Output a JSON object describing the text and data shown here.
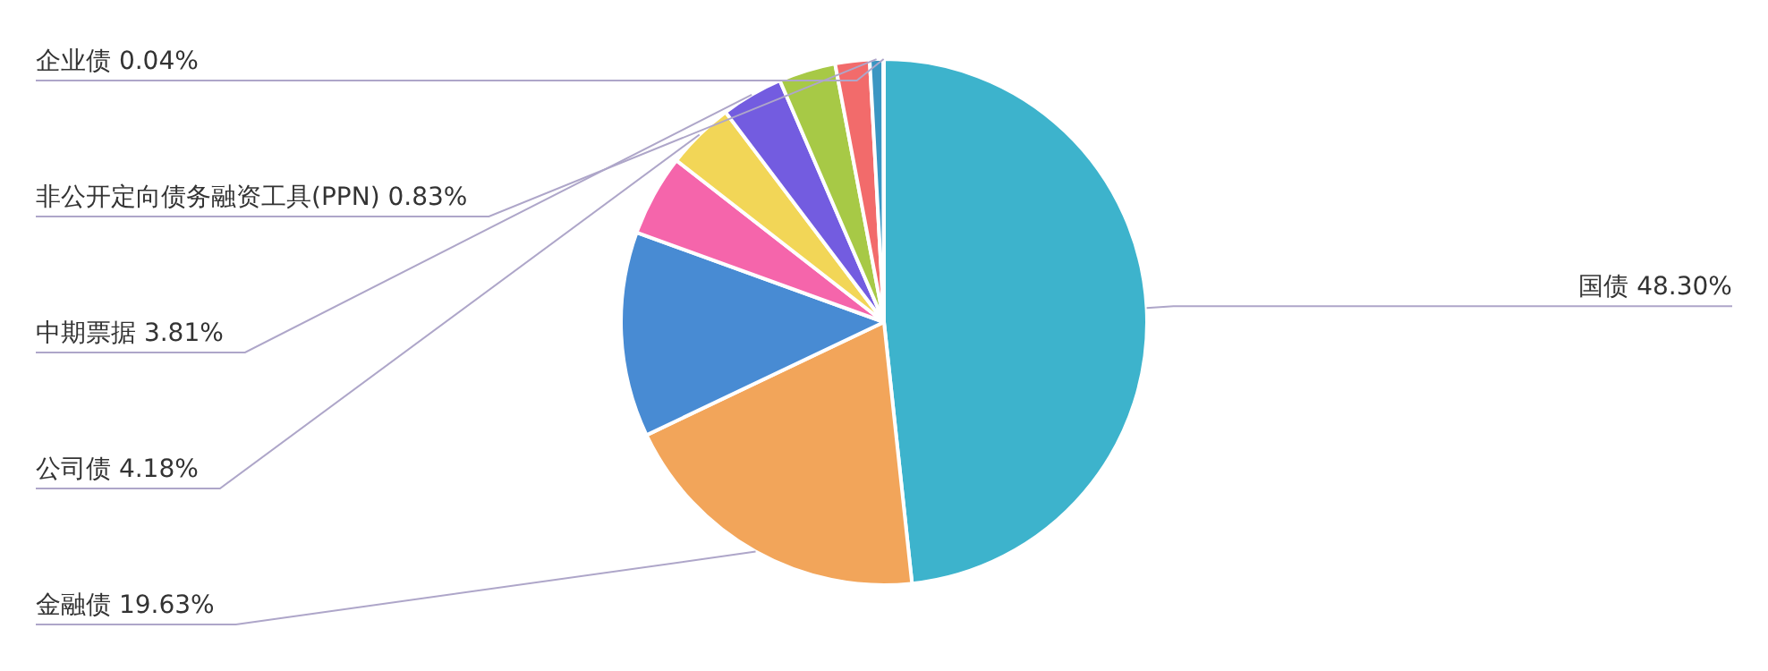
{
  "chart_data": {
    "type": "pie",
    "categories": [
      "国债",
      "金融债",
      null,
      null,
      "公司债",
      "中期票据",
      null,
      null,
      "非公开定向债务融资工具(PPN)",
      "企业债"
    ],
    "values": [
      48.3,
      19.63,
      12.6,
      5.0,
      4.18,
      3.81,
      3.5,
      2.11,
      0.83,
      0.04
    ],
    "value_labels": [
      "48.30%",
      "19.63%",
      null,
      null,
      "4.18%",
      "3.81%",
      null,
      null,
      "0.83%",
      "0.04%"
    ],
    "colors": [
      "#3db3cc",
      "#f2a55a",
      "#488bd3",
      "#f565ab",
      "#f2d657",
      "#735ce0",
      "#a7c946",
      "#f26b6b",
      "#3b96c2",
      "#5a7fc0"
    ],
    "legend": false
  }
}
